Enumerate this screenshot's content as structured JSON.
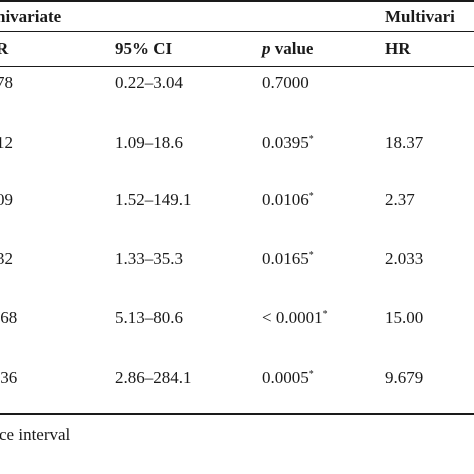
{
  "table": {
    "group_headers": [
      "nivariate",
      "Multivari"
    ],
    "column_headers": {
      "hr_partial": "R",
      "ci": "95% CI",
      "p_italic": "p",
      "p_rest": " value",
      "hr_multi": "HR"
    },
    "rows": [
      {
        "hr": "78",
        "ci": "0.22–3.04",
        "p": "0.7000",
        "p_sup": "",
        "mhr": ""
      },
      {
        "hr": "12",
        "ci": "1.09–18.6",
        "p": "0.0395",
        "p_sup": "*",
        "mhr": "18.37"
      },
      {
        "hr": "09",
        "ci": "1.52–149.1",
        "p": "0.0106",
        "p_sup": "*",
        "mhr": "2.37"
      },
      {
        "hr": "32",
        "ci": "1.33–35.3",
        "p": "0.0165",
        "p_sup": "*",
        "mhr": "2.033"
      },
      {
        "hr": ".68",
        "ci": "5.13–80.6",
        "p": "< 0.0001",
        "p_sup": "*",
        "mhr": "15.00"
      },
      {
        "hr": ".36",
        "ci": "2.86–284.1",
        "p": "0.0005",
        "p_sup": "*",
        "mhr": "9.679"
      }
    ],
    "footnote": "ce interval"
  }
}
